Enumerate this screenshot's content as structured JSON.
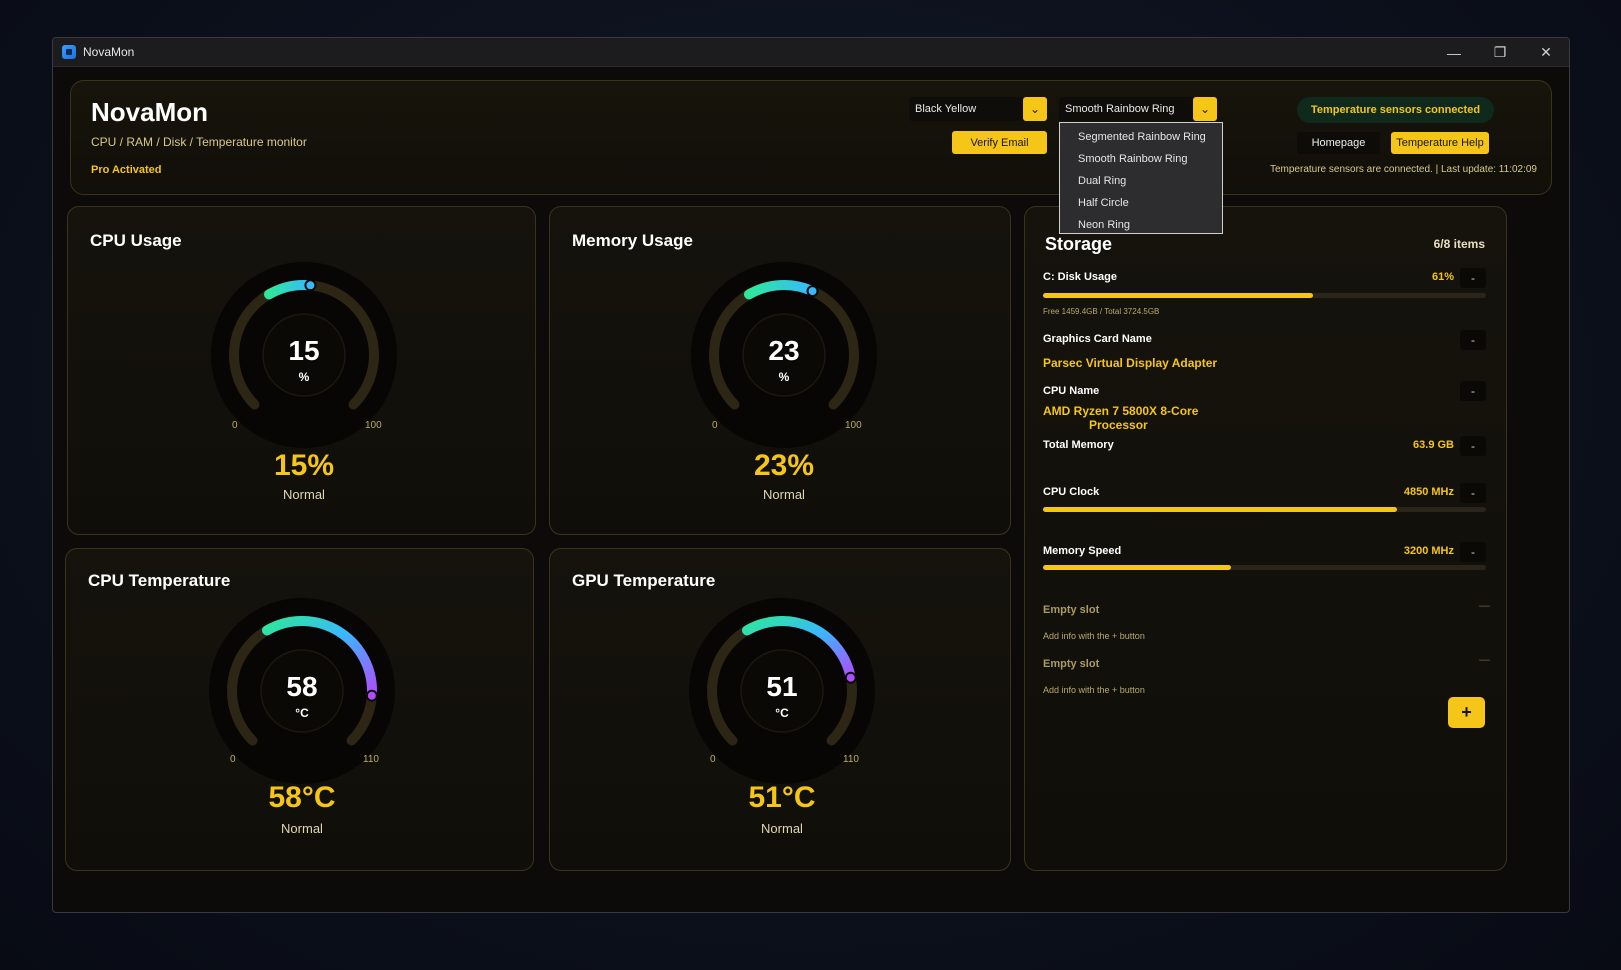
{
  "window": {
    "title": "NovaMon",
    "minimize": "—",
    "maximize": "❐",
    "close": "✕"
  },
  "header": {
    "app_name": "NovaMon",
    "subtitle": "CPU / RAM / Disk / Temperature monitor",
    "license": "Pro Activated",
    "theme_select": "Black Yellow",
    "ring_select": "Smooth Rainbow Ring",
    "verify_email": "Verify Email",
    "status_pill": "Temperature sensors connected",
    "homepage": "Homepage",
    "temp_help": "Temperature Help",
    "status_line": "Temperature sensors are connected.  |  Last update: 11:02:09"
  },
  "ring_dropdown": {
    "options": [
      "Segmented Rainbow Ring",
      "Smooth Rainbow Ring",
      "Dual Ring",
      "Half Circle",
      "Neon Ring"
    ]
  },
  "gauges": [
    {
      "title": "CPU Usage",
      "value": "15",
      "unit": "%",
      "min": "0",
      "max": "100",
      "display": "15%",
      "status": "Normal",
      "fraction": 0.15
    },
    {
      "title": "Memory Usage",
      "value": "23",
      "unit": "%",
      "min": "0",
      "max": "100",
      "display": "23%",
      "status": "Normal",
      "fraction": 0.23
    },
    {
      "title": "CPU Temperature",
      "value": "58",
      "unit": "°C",
      "min": "0",
      "max": "110",
      "display": "58°C",
      "status": "Normal",
      "fraction": 0.527
    },
    {
      "title": "GPU Temperature",
      "value": "51",
      "unit": "°C",
      "min": "0",
      "max": "110",
      "display": "51°C",
      "status": "Normal",
      "fraction": 0.464
    }
  ],
  "storage": {
    "title": "Storage",
    "count": "6/8 items",
    "disk": {
      "label": "C: Disk Usage",
      "value": "61%",
      "fraction": 0.61,
      "detail": "Free 1459.4GB / Total 3724.5GB"
    },
    "gpu_name": {
      "label": "Graphics Card Name",
      "value": "Parsec Virtual Display Adapter"
    },
    "cpu_name": {
      "label": "CPU Name",
      "value_line1": "AMD Ryzen 7 5800X 8-Core",
      "value_line2": "Processor"
    },
    "total_memory": {
      "label": "Total Memory",
      "value": "63.9 GB"
    },
    "cpu_clock": {
      "label": "CPU Clock",
      "value": "4850 MHz",
      "fraction": 0.8
    },
    "memory_speed": {
      "label": "Memory Speed",
      "value": "3200 MHz",
      "fraction": 0.425
    },
    "empty_slots": [
      {
        "title": "Empty slot",
        "hint": "Add info with the + button"
      },
      {
        "title": "Empty slot",
        "hint": "Add info with the + button"
      }
    ],
    "minus": "-",
    "empty_dash": "—",
    "add": "+"
  },
  "colors": {
    "accent": "#f5c518",
    "ring_start": "#2ee89a",
    "ring_mid": "#38b8ff",
    "ring_end": "#b04cff",
    "track": "#2e2614"
  }
}
